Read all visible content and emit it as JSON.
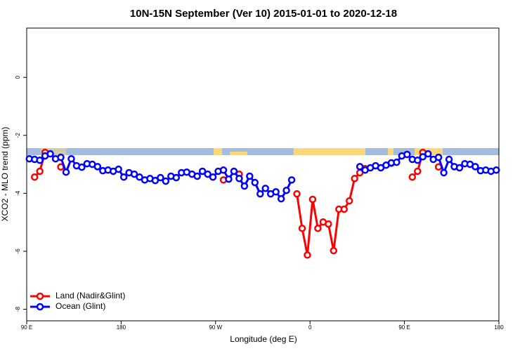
{
  "chart_data": {
    "type": "line",
    "title": "10N-15N September (Ver 10)   2015-01-01 to 2020-12-18",
    "xlabel": "Longitude (deg E)",
    "ylabel": "XCO2 - MLO trend (ppm)",
    "xlim": [
      90,
      540
    ],
    "ylim": [
      -8.4,
      1.7
    ],
    "xticks": [
      {
        "value": 90,
        "label": "90 E"
      },
      180,
      {
        "value": 270,
        "label": "90 W"
      },
      {
        "value": 360,
        "label": "0"
      },
      {
        "value": 450,
        "label": "90 E"
      },
      {
        "value": 540,
        "label": "180"
      }
    ],
    "yticks": [
      0,
      -2,
      -4,
      -6,
      -8
    ],
    "legend": "bottom-left",
    "x": [
      92.5,
      97.5,
      102.5,
      107.5,
      112.5,
      117.5,
      122.5,
      127.5,
      132.5,
      137.5,
      142.5,
      147.5,
      152.5,
      157.5,
      162.5,
      167.5,
      172.5,
      177.5,
      182.5,
      187.5,
      192.5,
      197.5,
      202.5,
      207.5,
      212.5,
      217.5,
      222.5,
      227.5,
      232.5,
      237.5,
      242.5,
      247.5,
      252.5,
      257.5,
      262.5,
      267.5,
      272.5,
      277.5,
      282.5,
      287.5,
      292.5,
      297.5,
      302.5,
      307.5,
      312.5,
      317.5,
      322.5,
      327.5,
      332.5,
      337.5,
      342.5,
      347.5,
      352.5,
      357.5,
      362.5,
      367.5,
      372.5,
      377.5,
      382.5,
      387.5,
      392.5,
      397.5,
      402.5,
      407.5,
      412.5,
      417.5,
      422.5,
      427.5,
      432.5,
      437.5,
      442.5,
      447.5,
      452.5,
      457.5,
      462.5,
      467.5,
      472.5,
      477.5,
      482.5,
      487.5,
      492.5,
      497.5,
      502.5,
      507.5,
      512.5,
      517.5,
      522.5,
      527.5,
      532.5,
      537.5
    ],
    "series": [
      {
        "name": "Land (Nadir&Glint)",
        "color": "#ff0000",
        "values": [
          null,
          -3.44,
          -3.24,
          -2.59,
          null,
          null,
          -3.09,
          null,
          null,
          null,
          null,
          null,
          null,
          null,
          null,
          null,
          null,
          null,
          null,
          null,
          null,
          null,
          null,
          null,
          null,
          null,
          null,
          null,
          null,
          null,
          null,
          null,
          null,
          null,
          null,
          null,
          null,
          -3.54,
          null,
          null,
          -3.34,
          null,
          null,
          null,
          null,
          null,
          null,
          null,
          null,
          null,
          null,
          -4.02,
          -5.21,
          -6.13,
          -4.21,
          -5.21,
          -4.99,
          -5.06,
          -5.98,
          -4.55,
          -4.55,
          -4.26,
          -3.49,
          -3.29,
          -3.15,
          null,
          null,
          null,
          null,
          -2.96,
          null,
          null,
          null,
          -3.44,
          -3.24,
          -2.59,
          null,
          null,
          -3.09,
          null,
          null,
          null,
          null,
          null,
          null,
          null,
          null,
          null,
          null,
          null
        ]
      },
      {
        "name": "Ocean (Glint)",
        "color": "#0000ff",
        "values": [
          -2.81,
          -2.83,
          -2.86,
          -2.71,
          -2.64,
          -2.81,
          -2.76,
          -3.27,
          -2.81,
          -3.05,
          -3.1,
          -2.98,
          -3.0,
          -3.08,
          -3.22,
          -3.2,
          -3.24,
          -3.17,
          -3.44,
          -3.29,
          -3.34,
          -3.44,
          -3.54,
          -3.49,
          -3.56,
          -3.46,
          -3.58,
          -3.41,
          -3.46,
          -3.29,
          -3.27,
          -3.34,
          -3.41,
          -3.24,
          -3.34,
          -3.44,
          -3.24,
          -3.2,
          -3.51,
          -3.24,
          -3.49,
          -3.75,
          -3.41,
          -3.63,
          -4.02,
          -3.83,
          -4.02,
          -3.95,
          -4.19,
          -3.9,
          -3.54,
          null,
          null,
          null,
          null,
          null,
          null,
          null,
          null,
          null,
          null,
          null,
          null,
          -3.08,
          -3.2,
          -3.12,
          -3.05,
          -3.12,
          -3.03,
          -2.95,
          -2.93,
          -2.71,
          -2.66,
          -2.83,
          -2.86,
          -2.74,
          -2.64,
          -2.83,
          -2.76,
          -3.29,
          -2.83,
          -3.08,
          -3.12,
          -2.98,
          -3.0,
          -3.08,
          -3.22,
          -3.2,
          -3.24,
          -3.2
        ]
      }
    ]
  }
}
